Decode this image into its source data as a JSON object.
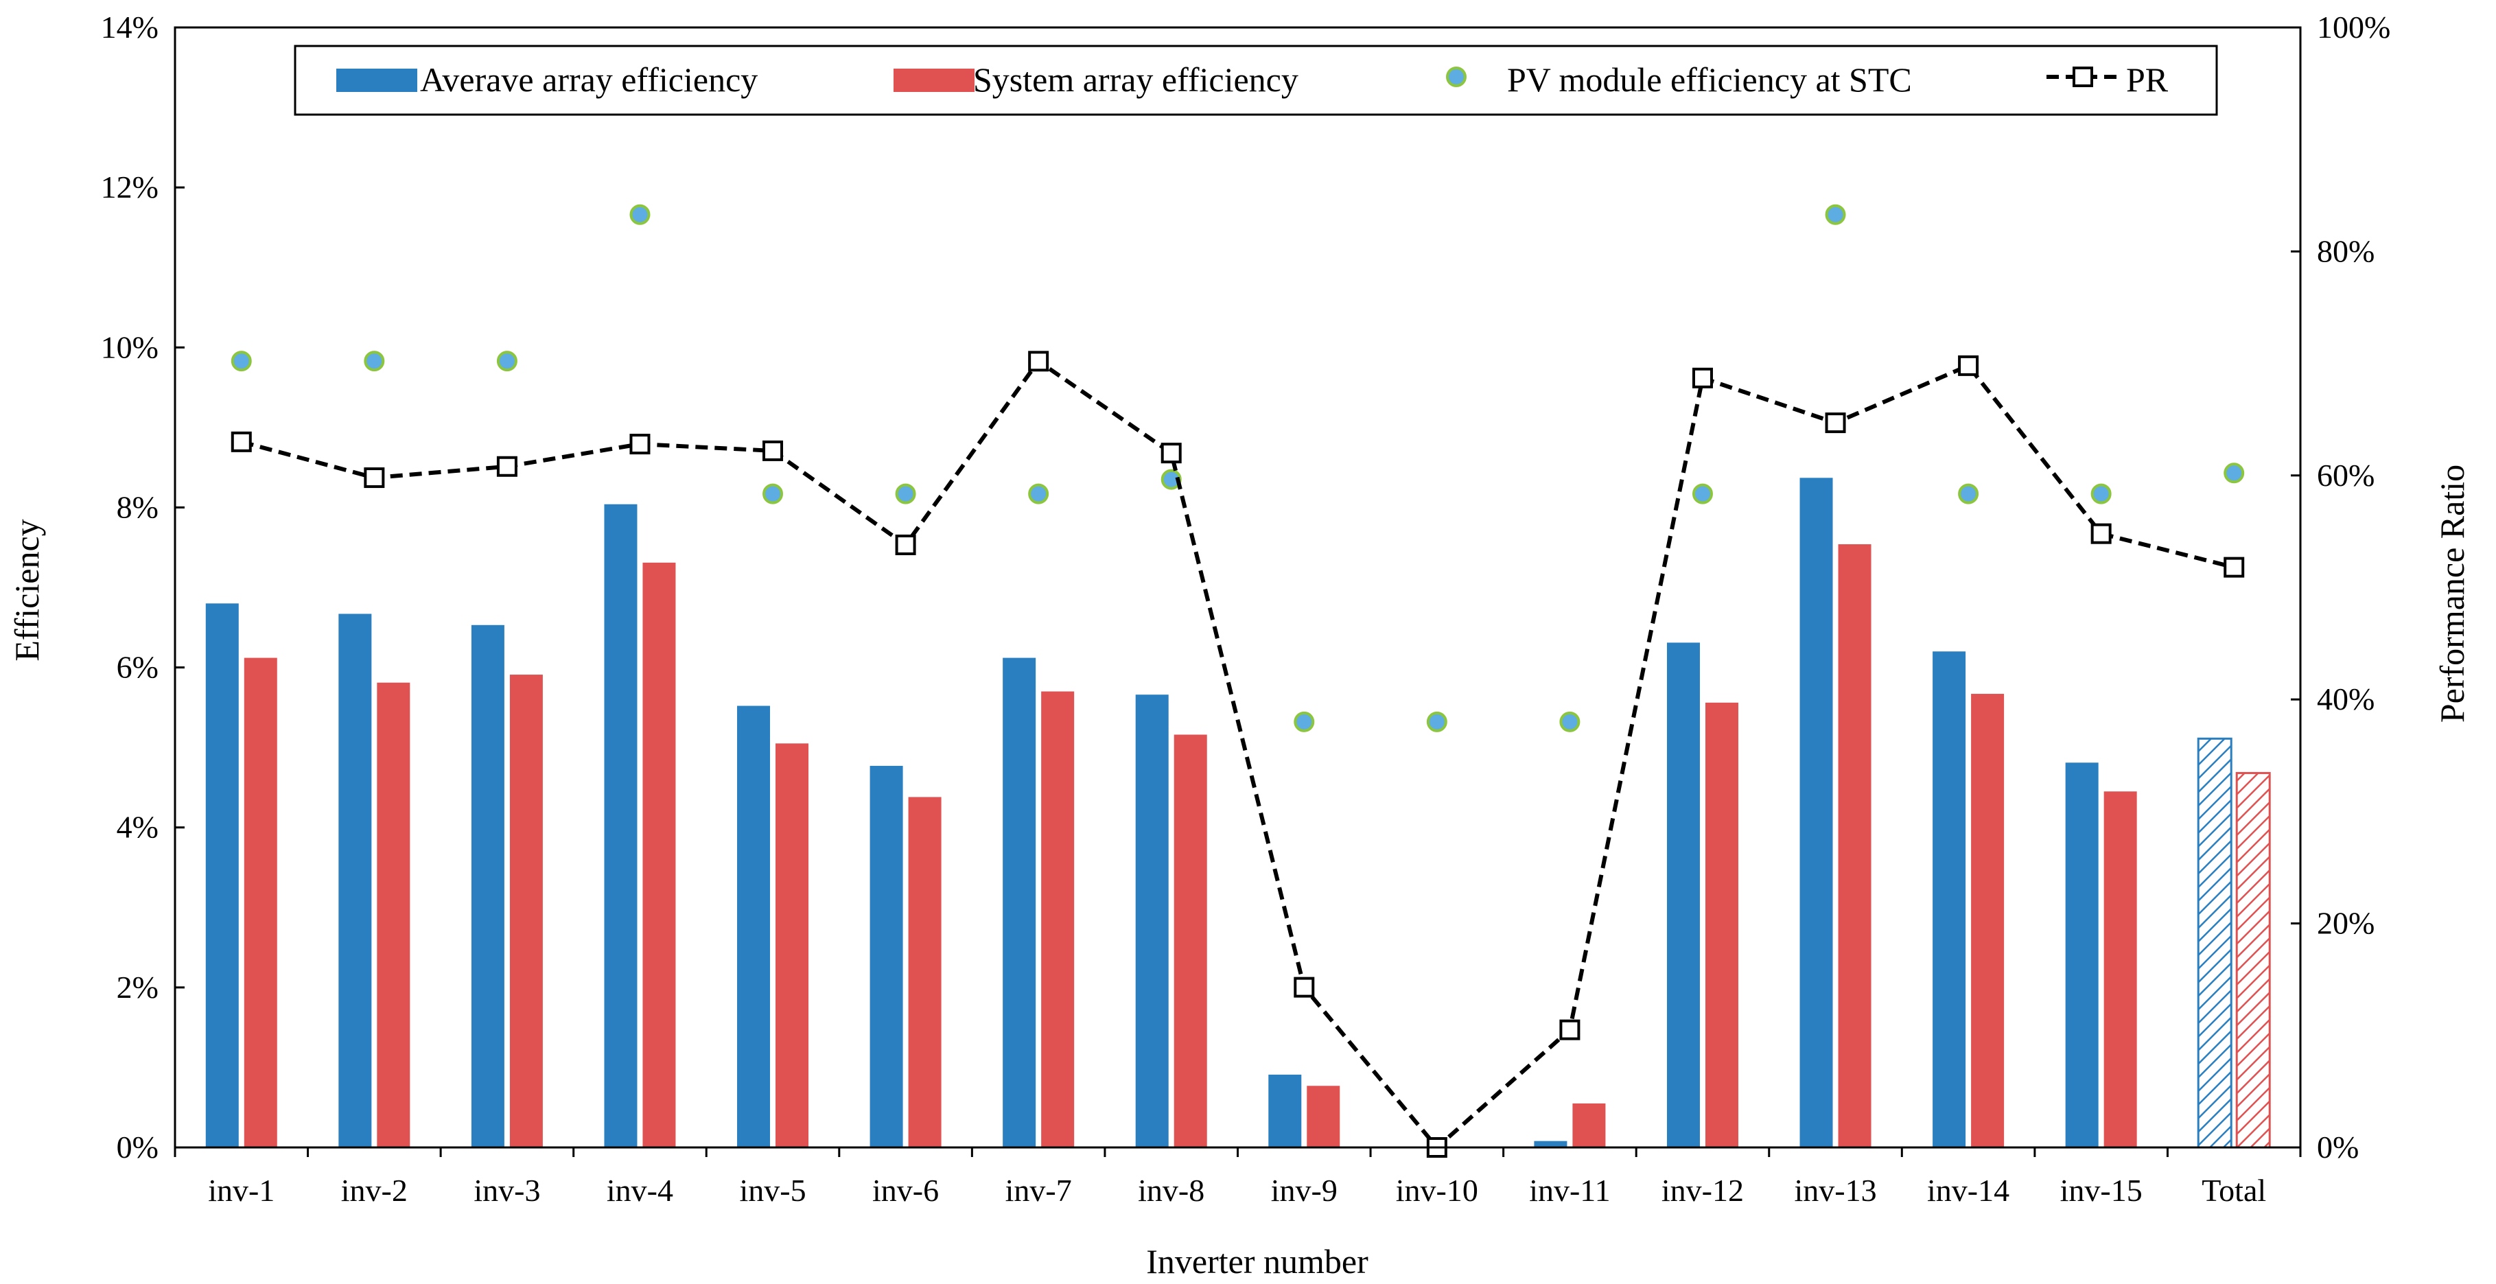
{
  "chart_data": {
    "type": "bar",
    "xlabel": "Inverter number",
    "ylabel": "Efficiency",
    "y2label": "Performance Ratio",
    "ylim": [
      0,
      14
    ],
    "y2lim": [
      0,
      100
    ],
    "yticks": [
      "0%",
      "2%",
      "4%",
      "6%",
      "8%",
      "10%",
      "12%",
      "14%"
    ],
    "y2ticks": [
      "0%",
      "20%",
      "40%",
      "60%",
      "80%",
      "100%"
    ],
    "grid": false,
    "legend_position": "top",
    "categories": [
      "inv-1",
      "inv-2",
      "inv-3",
      "inv-4",
      "inv-5",
      "inv-6",
      "inv-7",
      "inv-8",
      "inv-9",
      "inv-10",
      "inv-11",
      "inv-12",
      "inv-13",
      "inv-14",
      "inv-15",
      "Total"
    ],
    "series": [
      {
        "name": "Averave array efficiency",
        "kind": "bar",
        "axis": "left",
        "color": "#2a7fc1",
        "values": [
          6.8,
          6.67,
          6.53,
          8.04,
          5.52,
          4.77,
          6.12,
          5.66,
          0.91,
          0.0,
          0.08,
          6.31,
          8.37,
          6.2,
          4.81,
          5.11
        ]
      },
      {
        "name": "System array efficiency",
        "kind": "bar",
        "axis": "left",
        "color": "#e05252",
        "values": [
          6.12,
          5.81,
          5.91,
          7.31,
          5.05,
          4.38,
          5.7,
          5.16,
          0.77,
          0.0,
          0.55,
          5.56,
          7.54,
          5.67,
          4.45,
          4.68
        ]
      },
      {
        "name": "PV module efficiency at STC",
        "kind": "scatter",
        "axis": "left",
        "color": "#5dade2",
        "edge_color": "#8cc63f",
        "values": [
          9.83,
          9.83,
          9.83,
          11.66,
          8.17,
          8.17,
          8.17,
          8.35,
          5.32,
          5.32,
          5.32,
          8.17,
          11.66,
          8.17,
          8.17,
          8.43
        ]
      },
      {
        "name": "PR",
        "kind": "line",
        "axis": "right",
        "color": "#000000",
        "values": [
          63.0,
          59.8,
          60.8,
          62.8,
          62.2,
          53.8,
          70.2,
          62.0,
          14.3,
          0.0,
          10.5,
          68.7,
          64.7,
          69.8,
          54.8,
          51.8
        ]
      }
    ]
  }
}
